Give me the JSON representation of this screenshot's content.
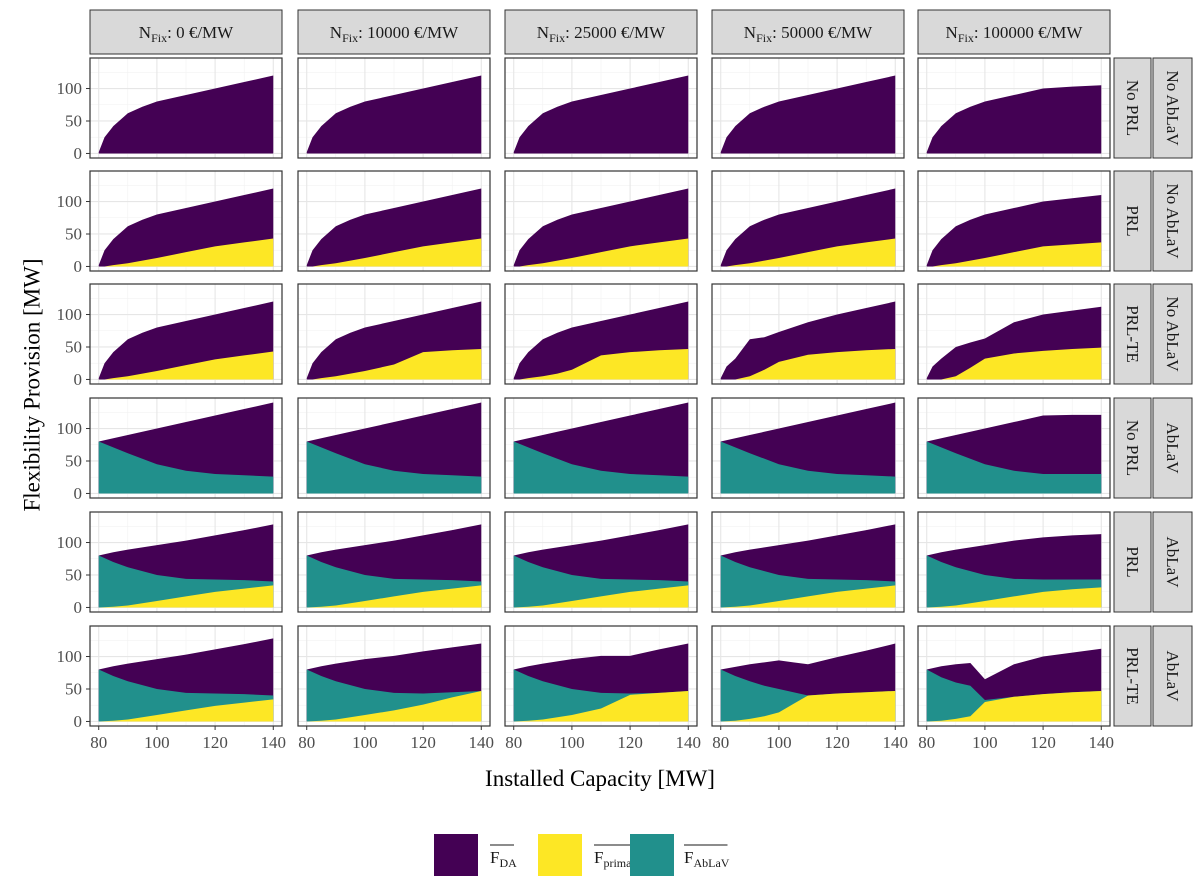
{
  "chart_data": {
    "type": "area",
    "stacked": true,
    "xlabel": "Installed Capacity [MW]",
    "ylabel": "Flexibility Provision [MW]",
    "xlim": [
      80,
      140
    ],
    "ylim": [
      0,
      140
    ],
    "xticks": [
      80,
      100,
      120,
      140
    ],
    "yticks": [
      0,
      50,
      100
    ],
    "grid": true,
    "legend_position": "bottom",
    "colors": {
      "F_DA": "#440154",
      "F_primary": "#FDE725",
      "F_AbLaV": "#21908C",
      "strip_bg": "#D9D9D9",
      "grid_major": "#E6E6E6",
      "grid_minor": "#F2F2F2",
      "panel_border": "#333333"
    },
    "legend": [
      {
        "key": "F_DA",
        "label": "F",
        "sub": "DA"
      },
      {
        "key": "F_primary",
        "label": "F",
        "sub": "primary"
      },
      {
        "key": "F_AbLaV",
        "label": "F",
        "sub": "AbLaV"
      }
    ],
    "columns": [
      {
        "prefix": "N",
        "sub": "Fix",
        "suffix": ": 0 €/MW"
      },
      {
        "prefix": "N",
        "sub": "Fix",
        "suffix": ": 10000 €/MW"
      },
      {
        "prefix": "N",
        "sub": "Fix",
        "suffix": ": 25000 €/MW"
      },
      {
        "prefix": "N",
        "sub": "Fix",
        "suffix": ": 50000 €/MW"
      },
      {
        "prefix": "N",
        "sub": "Fix",
        "suffix": ": 100000 €/MW"
      }
    ],
    "rows": [
      {
        "label1": "No PRL",
        "label2": "No AbLaV"
      },
      {
        "label1": "PRL",
        "label2": "No AbLaV"
      },
      {
        "label1": "PRL-TE",
        "label2": "No AbLaV"
      },
      {
        "label1": "No PRL",
        "label2": "AbLaV"
      },
      {
        "label1": "PRL",
        "label2": "AbLaV"
      },
      {
        "label1": "PRL-TE",
        "label2": "AbLaV"
      }
    ],
    "panels": [
      [
        {
          "x": [
            80,
            82,
            85,
            90,
            95,
            100,
            110,
            120,
            130,
            140
          ],
          "total": [
            2,
            25,
            42,
            62,
            72,
            80,
            90,
            100,
            110,
            120
          ],
          "primary": null,
          "ablav": null
        },
        {
          "x": [
            80,
            82,
            85,
            90,
            95,
            100,
            110,
            120,
            130,
            140
          ],
          "total": [
            2,
            25,
            42,
            62,
            72,
            80,
            90,
            100,
            110,
            120
          ],
          "primary": null,
          "ablav": null
        },
        {
          "x": [
            80,
            82,
            85,
            90,
            95,
            100,
            110,
            120,
            130,
            140
          ],
          "total": [
            2,
            25,
            42,
            62,
            72,
            80,
            90,
            100,
            110,
            120
          ],
          "primary": null,
          "ablav": null
        },
        {
          "x": [
            80,
            82,
            85,
            90,
            95,
            100,
            110,
            120,
            130,
            140
          ],
          "total": [
            2,
            25,
            42,
            62,
            72,
            80,
            90,
            100,
            110,
            120
          ],
          "primary": null,
          "ablav": null
        },
        {
          "x": [
            80,
            82,
            85,
            90,
            95,
            100,
            110,
            120,
            130,
            140
          ],
          "total": [
            2,
            25,
            42,
            62,
            72,
            80,
            90,
            100,
            103,
            105
          ],
          "primary": null,
          "ablav": null
        }
      ],
      [
        {
          "x": [
            80,
            82,
            85,
            90,
            95,
            100,
            110,
            120,
            130,
            140
          ],
          "total": [
            2,
            25,
            42,
            62,
            72,
            80,
            90,
            100,
            110,
            120
          ],
          "primary": [
            0,
            0,
            2,
            5,
            9,
            13,
            22,
            31,
            37,
            43
          ],
          "ablav": null
        },
        {
          "x": [
            80,
            82,
            85,
            90,
            95,
            100,
            110,
            120,
            130,
            140
          ],
          "total": [
            2,
            25,
            42,
            62,
            72,
            80,
            90,
            100,
            110,
            120
          ],
          "primary": [
            0,
            0,
            2,
            5,
            9,
            13,
            22,
            31,
            37,
            43
          ],
          "ablav": null
        },
        {
          "x": [
            80,
            82,
            85,
            90,
            95,
            100,
            110,
            120,
            130,
            140
          ],
          "total": [
            2,
            25,
            42,
            62,
            72,
            80,
            90,
            100,
            110,
            120
          ],
          "primary": [
            0,
            0,
            2,
            5,
            9,
            13,
            22,
            31,
            37,
            43
          ],
          "ablav": null
        },
        {
          "x": [
            80,
            82,
            85,
            90,
            95,
            100,
            110,
            120,
            130,
            140
          ],
          "total": [
            2,
            25,
            42,
            62,
            72,
            80,
            90,
            100,
            110,
            120
          ],
          "primary": [
            0,
            0,
            2,
            5,
            9,
            13,
            22,
            31,
            37,
            43
          ],
          "ablav": null
        },
        {
          "x": [
            80,
            82,
            85,
            90,
            95,
            100,
            110,
            120,
            130,
            140
          ],
          "total": [
            2,
            25,
            42,
            62,
            72,
            80,
            90,
            100,
            105,
            110
          ],
          "primary": [
            0,
            0,
            2,
            5,
            9,
            13,
            22,
            31,
            34,
            37
          ],
          "ablav": null
        }
      ],
      [
        {
          "x": [
            80,
            82,
            85,
            90,
            95,
            100,
            110,
            120,
            130,
            140
          ],
          "total": [
            2,
            25,
            42,
            62,
            72,
            80,
            90,
            100,
            110,
            120
          ],
          "primary": [
            0,
            0,
            2,
            5,
            9,
            13,
            22,
            31,
            37,
            43
          ],
          "ablav": null
        },
        {
          "x": [
            80,
            82,
            85,
            90,
            95,
            100,
            110,
            120,
            130,
            140
          ],
          "total": [
            2,
            25,
            42,
            62,
            72,
            80,
            90,
            100,
            110,
            120
          ],
          "primary": [
            0,
            0,
            2,
            5,
            9,
            13,
            23,
            42,
            45,
            47
          ],
          "ablav": null
        },
        {
          "x": [
            80,
            82,
            85,
            90,
            95,
            100,
            110,
            120,
            130,
            140
          ],
          "total": [
            2,
            25,
            42,
            62,
            72,
            80,
            90,
            100,
            110,
            120
          ],
          "primary": [
            0,
            0,
            2,
            5,
            9,
            15,
            37,
            42,
            45,
            47
          ],
          "ablav": null
        },
        {
          "x": [
            80,
            82,
            85,
            90,
            95,
            100,
            110,
            120,
            130,
            140
          ],
          "total": [
            2,
            20,
            32,
            62,
            65,
            73,
            88,
            100,
            110,
            120
          ],
          "primary": [
            0,
            0,
            0,
            5,
            15,
            27,
            38,
            42,
            45,
            47
          ],
          "ablav": null
        },
        {
          "x": [
            80,
            82,
            85,
            90,
            95,
            100,
            110,
            120,
            130,
            140
          ],
          "total": [
            2,
            20,
            32,
            50,
            57,
            63,
            88,
            100,
            106,
            112
          ],
          "primary": [
            0,
            0,
            0,
            5,
            18,
            32,
            40,
            44,
            47,
            49
          ],
          "ablav": null
        }
      ],
      [
        {
          "x": [
            80,
            90,
            100,
            110,
            120,
            130,
            140
          ],
          "total": [
            80,
            90,
            100,
            110,
            120,
            130,
            140
          ],
          "primary": null,
          "ablav": [
            80,
            62,
            45,
            35,
            30,
            28,
            26
          ]
        },
        {
          "x": [
            80,
            90,
            100,
            110,
            120,
            130,
            140
          ],
          "total": [
            80,
            90,
            100,
            110,
            120,
            130,
            140
          ],
          "primary": null,
          "ablav": [
            80,
            62,
            45,
            35,
            30,
            28,
            26
          ]
        },
        {
          "x": [
            80,
            90,
            100,
            110,
            120,
            130,
            140
          ],
          "total": [
            80,
            90,
            100,
            110,
            120,
            130,
            140
          ],
          "primary": null,
          "ablav": [
            80,
            62,
            45,
            35,
            30,
            28,
            26
          ]
        },
        {
          "x": [
            80,
            90,
            100,
            110,
            120,
            130,
            140
          ],
          "total": [
            80,
            90,
            100,
            110,
            120,
            130,
            140
          ],
          "primary": null,
          "ablav": [
            80,
            62,
            45,
            35,
            30,
            28,
            26
          ]
        },
        {
          "x": [
            80,
            90,
            100,
            110,
            120,
            130,
            140
          ],
          "total": [
            80,
            90,
            100,
            110,
            120,
            121,
            121
          ],
          "primary": null,
          "ablav": [
            80,
            62,
            45,
            35,
            30,
            30,
            30
          ]
        }
      ],
      [
        {
          "x": [
            80,
            85,
            90,
            100,
            110,
            120,
            130,
            140
          ],
          "total": [
            80,
            85,
            89,
            96,
            103,
            111,
            119,
            128
          ],
          "primary": [
            0,
            1,
            3,
            10,
            17,
            24,
            29,
            34
          ],
          "ablav": [
            80,
            70,
            62,
            50,
            44,
            43,
            42,
            40
          ]
        },
        {
          "x": [
            80,
            85,
            90,
            100,
            110,
            120,
            130,
            140
          ],
          "total": [
            80,
            85,
            89,
            96,
            103,
            111,
            119,
            128
          ],
          "primary": [
            0,
            1,
            3,
            10,
            17,
            24,
            29,
            34
          ],
          "ablav": [
            80,
            70,
            62,
            50,
            44,
            43,
            42,
            40
          ]
        },
        {
          "x": [
            80,
            85,
            90,
            100,
            110,
            120,
            130,
            140
          ],
          "total": [
            80,
            85,
            89,
            96,
            103,
            111,
            119,
            128
          ],
          "primary": [
            0,
            1,
            3,
            10,
            17,
            24,
            29,
            34
          ],
          "ablav": [
            80,
            70,
            62,
            50,
            44,
            43,
            42,
            40
          ]
        },
        {
          "x": [
            80,
            85,
            90,
            100,
            110,
            120,
            130,
            140
          ],
          "total": [
            80,
            85,
            89,
            96,
            103,
            111,
            119,
            128
          ],
          "primary": [
            0,
            1,
            3,
            10,
            17,
            24,
            29,
            34
          ],
          "ablav": [
            80,
            70,
            62,
            50,
            44,
            43,
            42,
            40
          ]
        },
        {
          "x": [
            80,
            85,
            90,
            100,
            110,
            120,
            130,
            140
          ],
          "total": [
            80,
            85,
            89,
            96,
            103,
            108,
            111,
            113
          ],
          "primary": [
            0,
            1,
            3,
            10,
            17,
            24,
            28,
            31
          ],
          "ablav": [
            80,
            70,
            62,
            50,
            44,
            43,
            43,
            43
          ]
        }
      ],
      [
        {
          "x": [
            80,
            85,
            90,
            100,
            110,
            120,
            130,
            140
          ],
          "total": [
            80,
            85,
            89,
            96,
            103,
            111,
            119,
            128
          ],
          "primary": [
            0,
            1,
            3,
            10,
            17,
            24,
            29,
            34
          ],
          "ablav": [
            80,
            70,
            62,
            50,
            44,
            43,
            42,
            40
          ]
        },
        {
          "x": [
            80,
            85,
            90,
            100,
            110,
            120,
            130,
            140
          ],
          "total": [
            80,
            85,
            89,
            96,
            101,
            108,
            114,
            120
          ],
          "primary": [
            0,
            1,
            3,
            10,
            17,
            26,
            37,
            47
          ],
          "ablav": [
            80,
            70,
            62,
            50,
            44,
            43,
            45,
            47
          ]
        },
        {
          "x": [
            80,
            85,
            90,
            100,
            110,
            120,
            130,
            140
          ],
          "total": [
            80,
            85,
            89,
            96,
            101,
            101,
            111,
            120
          ],
          "primary": [
            0,
            1,
            3,
            10,
            20,
            41,
            44,
            47
          ],
          "ablav": [
            80,
            70,
            62,
            50,
            44,
            43,
            44,
            47
          ]
        },
        {
          "x": [
            80,
            85,
            90,
            95,
            100,
            105,
            110,
            120,
            130,
            140
          ],
          "total": [
            80,
            84,
            88,
            91,
            94,
            91,
            88,
            99,
            109,
            120
          ],
          "primary": [
            0,
            1,
            4,
            8,
            14,
            27,
            40,
            43,
            45,
            47
          ],
          "ablav": [
            80,
            70,
            62,
            55,
            50,
            45,
            40,
            43,
            45,
            47
          ]
        },
        {
          "x": [
            80,
            85,
            90,
            95,
            100,
            110,
            120,
            130,
            140
          ],
          "total": [
            80,
            85,
            88,
            90,
            65,
            88,
            100,
            106,
            112
          ],
          "primary": [
            0,
            1,
            4,
            8,
            30,
            38,
            42,
            45,
            47
          ],
          "ablav": [
            80,
            68,
            60,
            55,
            33,
            38,
            42,
            45,
            47
          ]
        }
      ]
    ]
  }
}
